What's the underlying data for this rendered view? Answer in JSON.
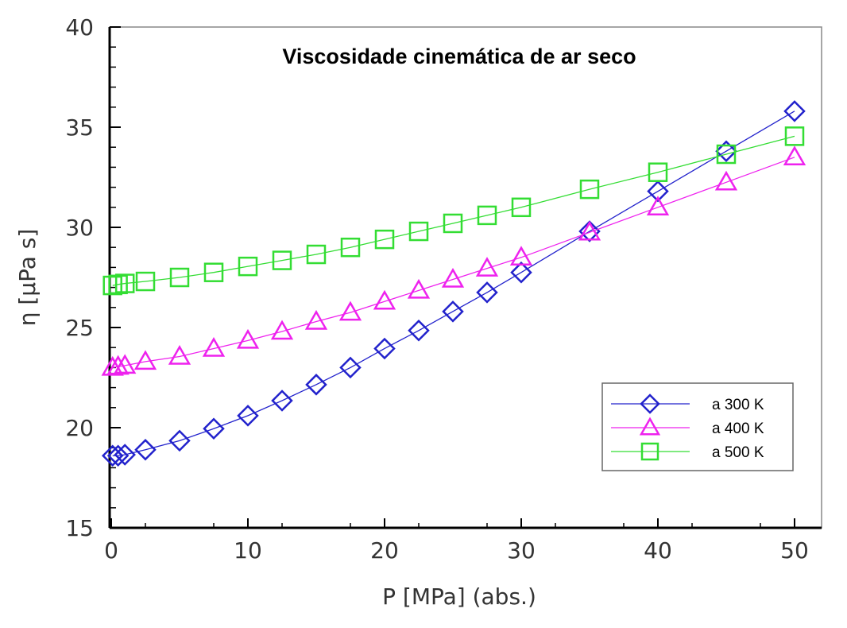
{
  "chart_data": {
    "type": "line",
    "title": "Viscosidade cinemática de ar seco",
    "xlabel": "P [MPa] (abs.)",
    "ylabel": "η [µPa s]",
    "xlim": [
      0,
      52
    ],
    "ylim": [
      15,
      40
    ],
    "xticks": [
      0,
      10,
      20,
      30,
      40,
      50
    ],
    "yticks": [
      15,
      20,
      25,
      30,
      35,
      40
    ],
    "grid": false,
    "legend_position": "bottom-right",
    "x": [
      0.1,
      0.5,
      1,
      2.5,
      5,
      7.5,
      10,
      12.5,
      15,
      17.5,
      20,
      22.5,
      25,
      27.5,
      30,
      35,
      40,
      45,
      50
    ],
    "series": [
      {
        "name": "a 300 K",
        "color": "#2222cc",
        "marker": "diamond",
        "values": [
          18.6,
          18.6,
          18.65,
          18.9,
          19.35,
          19.95,
          20.6,
          21.35,
          22.15,
          23.0,
          23.95,
          24.85,
          25.8,
          26.75,
          27.75,
          29.8,
          31.8,
          33.8,
          35.8
        ]
      },
      {
        "name": "a 400 K",
        "color": "#ee22ee",
        "marker": "triangle",
        "values": [
          23.0,
          23.05,
          23.1,
          23.3,
          23.55,
          23.95,
          24.35,
          24.8,
          25.3,
          25.75,
          26.3,
          26.85,
          27.4,
          27.95,
          28.5,
          29.75,
          31.0,
          32.25,
          33.5
        ]
      },
      {
        "name": "a 500 K",
        "color": "#33dd33",
        "marker": "square",
        "values": [
          27.1,
          27.15,
          27.2,
          27.3,
          27.5,
          27.75,
          28.05,
          28.35,
          28.65,
          29.0,
          29.4,
          29.8,
          30.2,
          30.6,
          31.0,
          31.9,
          32.75,
          33.65,
          34.55
        ]
      }
    ]
  }
}
